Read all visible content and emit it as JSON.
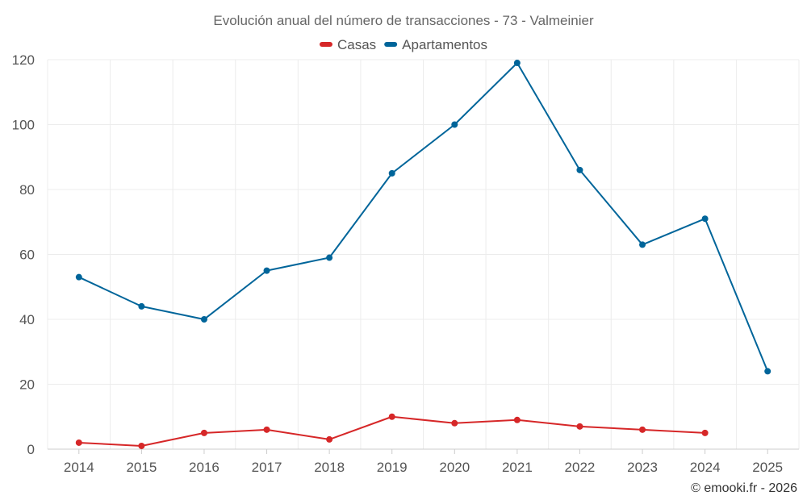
{
  "chart_data": {
    "type": "line",
    "title": "Evolución anual del número de transacciones - 73 - Valmeinier",
    "categories": [
      "2014",
      "2015",
      "2016",
      "2017",
      "2018",
      "2019",
      "2020",
      "2021",
      "2022",
      "2023",
      "2024",
      "2025"
    ],
    "series": [
      {
        "name": "Casas",
        "color": "#d62728",
        "values": [
          2,
          1,
          5,
          6,
          3,
          10,
          8,
          9,
          7,
          6,
          5,
          null
        ]
      },
      {
        "name": "Apartamentos",
        "color": "#00659a",
        "values": [
          53,
          44,
          40,
          55,
          59,
          85,
          100,
          119,
          86,
          63,
          71,
          24
        ]
      }
    ],
    "ylim": [
      0,
      120
    ],
    "yticks": [
      "0",
      "20",
      "40",
      "60",
      "80",
      "100",
      "120"
    ],
    "xlabel": "",
    "ylabel": "",
    "grid": true,
    "legend": "top-center"
  },
  "credit": "© emooki.fr - 2026"
}
